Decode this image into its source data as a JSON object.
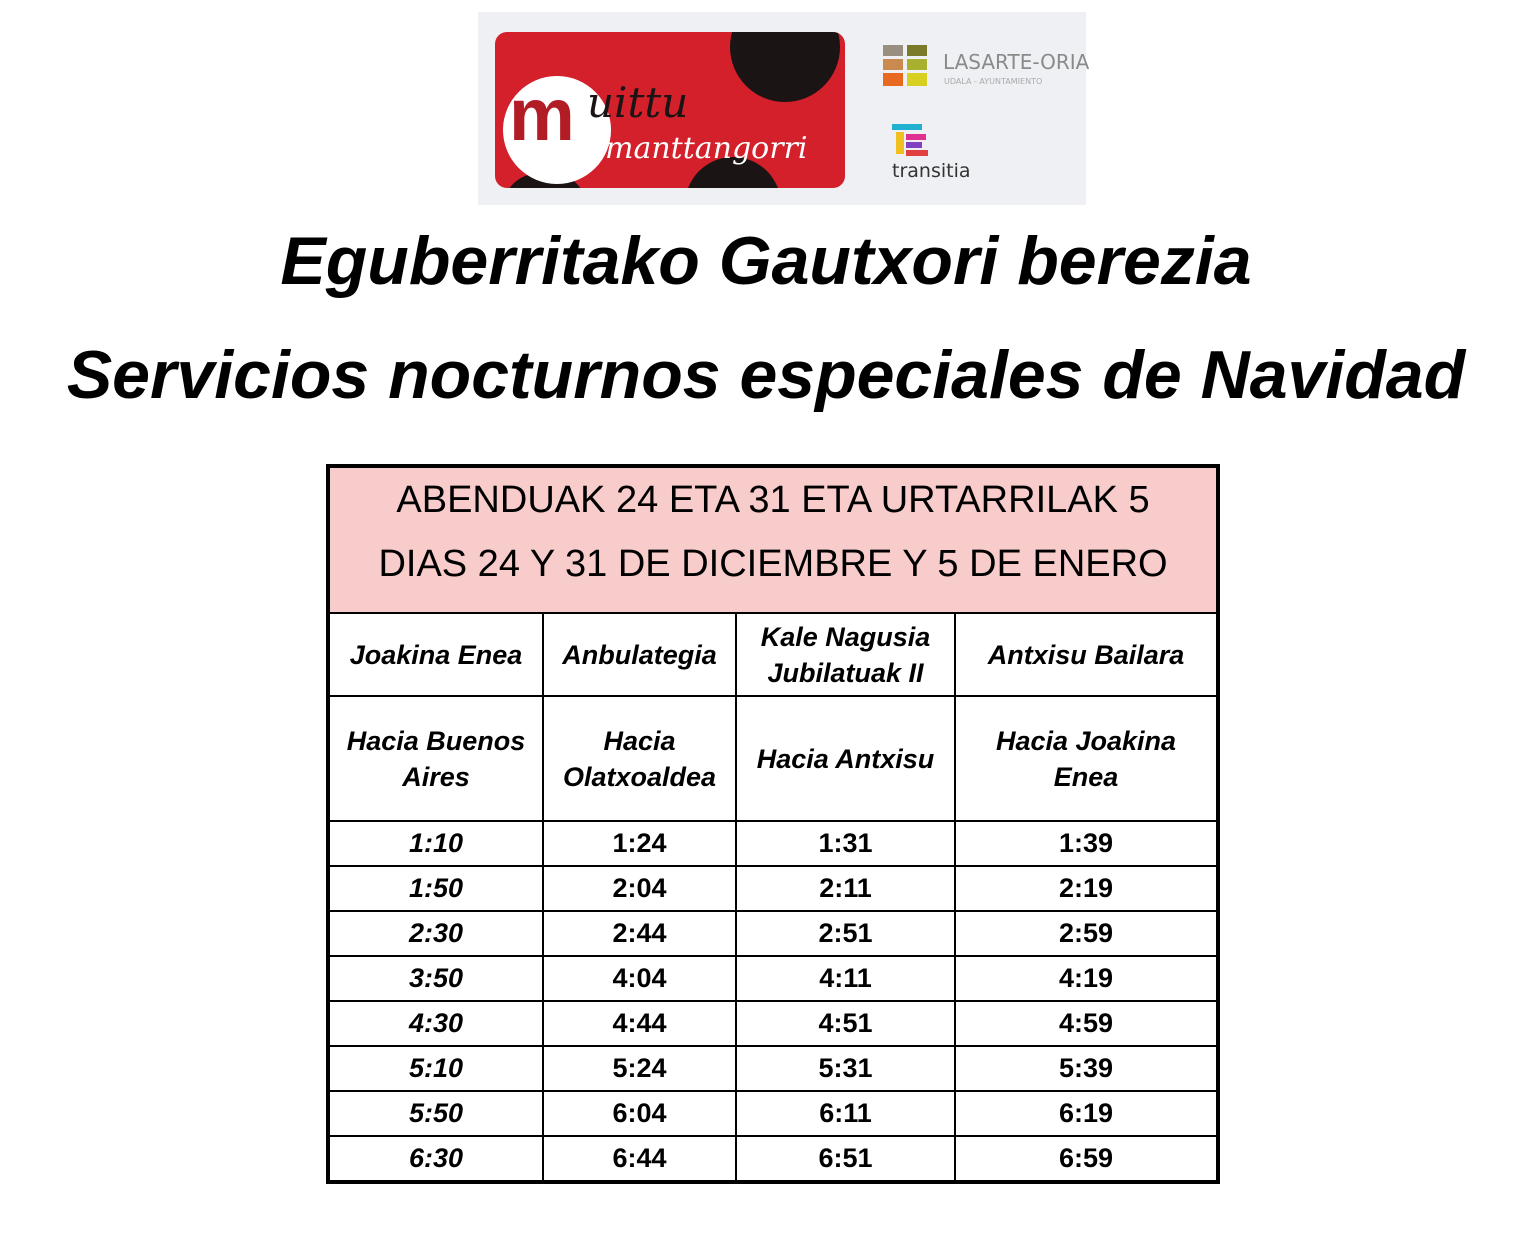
{
  "logos": {
    "muittu": {
      "line1": "muittu",
      "line2": "manttangorri"
    },
    "lasarte": {
      "name": "LASARTE-ORIA",
      "sub": "UDALA - AYUNTAMIENTO"
    },
    "transitia": "transitia"
  },
  "titles": {
    "basque": "Eguberritako Gautxori berezia",
    "spanish": "Servicios nocturnos especiales de Navidad"
  },
  "table": {
    "header_basque": "ABENDUAK 24 ETA 31 ETA URTARRILAK 5",
    "header_spanish": "DIAS 24 Y 31 DE DICIEMBRE Y 5 DE ENERO",
    "stops": [
      {
        "name": [
          "Joakina Enea"
        ],
        "direction": [
          "Hacia Buenos",
          "Aires"
        ]
      },
      {
        "name": [
          "Anbulategia"
        ],
        "direction": [
          "Hacia",
          "Olatxoaldea"
        ]
      },
      {
        "name": [
          "Kale Nagusia",
          "Jubilatuak II"
        ],
        "direction": [
          "Hacia Antxisu"
        ]
      },
      {
        "name": [
          "Antxisu Bailara"
        ],
        "direction": [
          "Hacia Joakina",
          "Enea"
        ]
      }
    ],
    "rows": [
      [
        "1:10",
        "1:24",
        "1:31",
        "1:39"
      ],
      [
        "1:50",
        "2:04",
        "2:11",
        "2:19"
      ],
      [
        "2:30",
        "2:44",
        "2:51",
        "2:59"
      ],
      [
        "3:50",
        "4:04",
        "4:11",
        "4:19"
      ],
      [
        "4:30",
        "4:44",
        "4:51",
        "4:59"
      ],
      [
        "5:10",
        "5:24",
        "5:31",
        "5:39"
      ],
      [
        "5:50",
        "6:04",
        "6:11",
        "6:19"
      ],
      [
        "6:30",
        "6:44",
        "6:51",
        "6:59"
      ]
    ]
  },
  "colors": {
    "header_bg": "#f9cccc",
    "brand_red": "#d4202a"
  }
}
